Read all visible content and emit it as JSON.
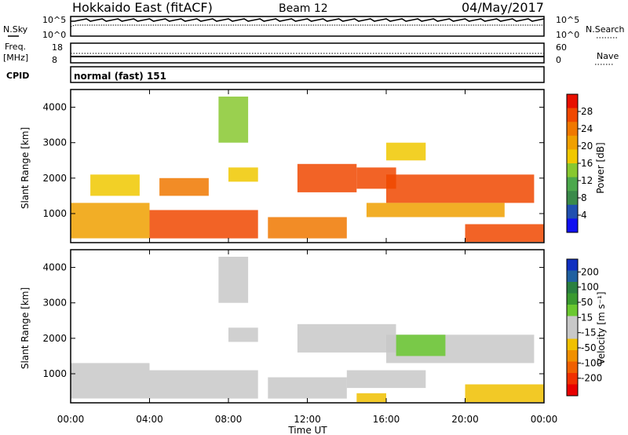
{
  "header": {
    "title": "Hokkaido East (fitACF)",
    "beam": "Beam 12",
    "date": "04/May/2017"
  },
  "noise_panel": {
    "left_label": "N.Sky",
    "right_label": "N.Search",
    "left_ticks": [
      "10^5",
      "10^0"
    ],
    "right_ticks": [
      "10^5",
      "10^0"
    ]
  },
  "freq_panel": {
    "left_label_1": "Freq.",
    "left_label_2": "[MHz]",
    "right_label": "Nave",
    "left_ticks": [
      "18",
      "8"
    ],
    "right_ticks": [
      "60",
      "0"
    ]
  },
  "cpid_panel": {
    "label": "CPID",
    "mode_text": "normal (fast) 151"
  },
  "axes": {
    "ylabel": "Slant Range [km]",
    "xlabel": "Time UT",
    "x_ticks": [
      "00:00",
      "04:00",
      "08:00",
      "12:00",
      "16:00",
      "20:00",
      "00:00"
    ],
    "y_ticks": [
      "1000",
      "2000",
      "3000",
      "4000"
    ]
  },
  "power_colorbar": {
    "label": "Power [dB]",
    "ticks": [
      "4",
      "8",
      "12",
      "16",
      "20",
      "24",
      "28"
    ],
    "colors": [
      "#1010f0",
      "#2050b0",
      "#3a8a4a",
      "#4ca84c",
      "#88c830",
      "#f0c800",
      "#f0a000",
      "#f07800",
      "#f04800",
      "#e81000"
    ]
  },
  "velocity_colorbar": {
    "label": "Velocity [m s⁻¹]",
    "ticks": [
      "200",
      "100",
      "50",
      "15",
      "-15",
      "-50",
      "-100",
      "-200"
    ],
    "colors": [
      "#1030c0",
      "#2060a0",
      "#2a8040",
      "#3a9a30",
      "#6ac830",
      "#c8c8c8",
      "#c8c8c8",
      "#f0c000",
      "#f09000",
      "#f06000",
      "#f03000",
      "#e80000"
    ]
  },
  "chart_data": [
    {
      "type": "heatmap",
      "title": "Power",
      "xlabel": "Time UT",
      "ylabel": "Slant Range [km]",
      "x_range": [
        "00:00",
        "24:00"
      ],
      "ylim": [
        180,
        4500
      ],
      "colorbar_range_db": [
        0,
        32
      ],
      "bands": [
        {
          "t0": 0.0,
          "t1": 4.0,
          "r0": 300,
          "r1": 1300,
          "db": 22
        },
        {
          "t0": 1.0,
          "t1": 3.5,
          "r0": 1500,
          "r1": 2100,
          "db": 16
        },
        {
          "t0": 4.5,
          "t1": 7.0,
          "r0": 1500,
          "r1": 2000,
          "db": 24
        },
        {
          "t0": 4.0,
          "t1": 9.5,
          "r0": 300,
          "r1": 1100,
          "db": 26
        },
        {
          "t0": 8.0,
          "t1": 9.5,
          "r0": 1900,
          "r1": 2300,
          "db": 18
        },
        {
          "t0": 11.5,
          "t1": 14.5,
          "r0": 1600,
          "r1": 2400,
          "db": 28
        },
        {
          "t0": 14.5,
          "t1": 16.5,
          "r0": 1700,
          "r1": 2300,
          "db": 26
        },
        {
          "t0": 16.0,
          "t1": 23.5,
          "r0": 1300,
          "r1": 2100,
          "db": 26
        },
        {
          "t0": 10.0,
          "t1": 14.0,
          "r0": 300,
          "r1": 900,
          "db": 24
        },
        {
          "t0": 15.0,
          "t1": 22.0,
          "r0": 900,
          "r1": 1300,
          "db": 20
        },
        {
          "t0": 20.0,
          "t1": 24.0,
          "r0": 200,
          "r1": 700,
          "db": 27
        },
        {
          "t0": 16.0,
          "t1": 18.0,
          "r0": 2500,
          "r1": 3000,
          "db": 16
        },
        {
          "t0": 7.5,
          "t1": 9.0,
          "r0": 3000,
          "r1": 4300,
          "db": 14
        }
      ]
    },
    {
      "type": "heatmap",
      "title": "Velocity",
      "xlabel": "Time UT",
      "ylabel": "Slant Range [km]",
      "x_range": [
        "00:00",
        "24:00"
      ],
      "ylim": [
        180,
        4500
      ],
      "colorbar_range_ms": [
        -200,
        200
      ],
      "bands": [
        {
          "t0": 0.0,
          "t1": 4.0,
          "r0": 300,
          "r1": 1300,
          "v": 0
        },
        {
          "t0": 4.0,
          "t1": 9.5,
          "r0": 300,
          "r1": 1100,
          "v": 0
        },
        {
          "t0": 8.0,
          "t1": 9.5,
          "r0": 1900,
          "r1": 2300,
          "v": 0
        },
        {
          "t0": 11.5,
          "t1": 16.5,
          "r0": 1600,
          "r1": 2400,
          "v": 0
        },
        {
          "t0": 16.0,
          "t1": 23.5,
          "r0": 1300,
          "r1": 2100,
          "v": 0
        },
        {
          "t0": 16.5,
          "t1": 19.0,
          "r0": 1500,
          "r1": 2100,
          "v": 40
        },
        {
          "t0": 14.0,
          "t1": 18.0,
          "r0": 600,
          "r1": 1100,
          "v": 30
        },
        {
          "t0": 14.5,
          "t1": 16.0,
          "r0": 200,
          "r1": 450,
          "v": -40
        },
        {
          "t0": 20.0,
          "t1": 24.0,
          "r0": 200,
          "r1": 700,
          "v": -40
        },
        {
          "t0": 10.0,
          "t1": 14.0,
          "r0": 300,
          "r1": 900,
          "v": 0
        },
        {
          "t0": 7.5,
          "t1": 9.0,
          "r0": 3000,
          "r1": 4300,
          "v": 0
        }
      ]
    }
  ]
}
